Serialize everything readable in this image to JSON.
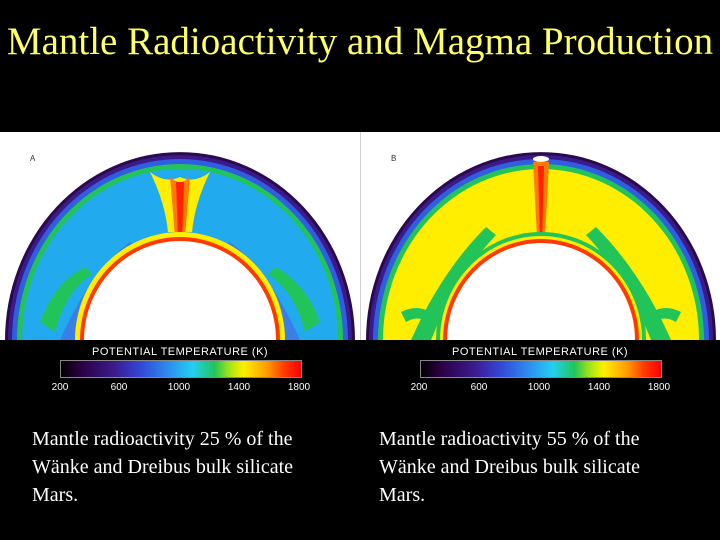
{
  "title": "Mantle Radioactivity and Magma Production",
  "panels": [
    {
      "letter": "A",
      "colorbar_label": "POTENTIAL TEMPERATURE (K)",
      "ticks": [
        "200",
        "600",
        "1000",
        "1400",
        "1800"
      ],
      "caption": "Mantle radioactivity 25 % of the Wänke and Dreibus bulk silicate Mars.",
      "mantle_color": "#22aaee"
    },
    {
      "letter": "B",
      "colorbar_label": "POTENTIAL TEMPERATURE (K)",
      "ticks": [
        "200",
        "600",
        "1000",
        "1400",
        "1800"
      ],
      "caption": "Mantle radioactivity 55 % of the Wänke and Dreibus bulk silicate Mars.",
      "mantle_color": "#ffee00"
    }
  ],
  "colors": {
    "title": "#ffff66",
    "background": "#000000"
  }
}
